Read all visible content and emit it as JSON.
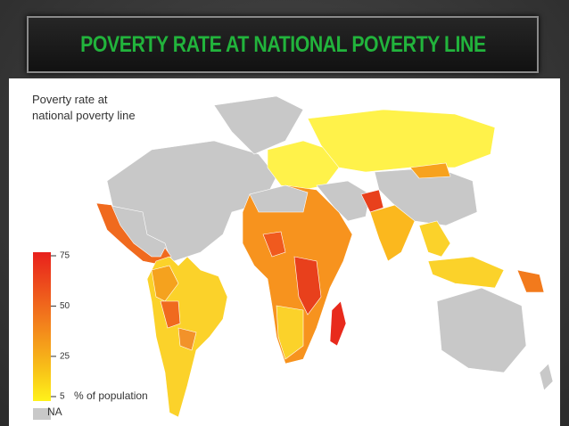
{
  "header": {
    "title": "POVERTY RATE AT NATIONAL POVERTY LINE"
  },
  "map": {
    "title_line1": "Poverty rate at",
    "title_line2": "national poverty line",
    "legend": {
      "ticks": [
        75,
        50,
        25,
        5
      ],
      "unit": "% of population",
      "na": "NA"
    }
  }
}
